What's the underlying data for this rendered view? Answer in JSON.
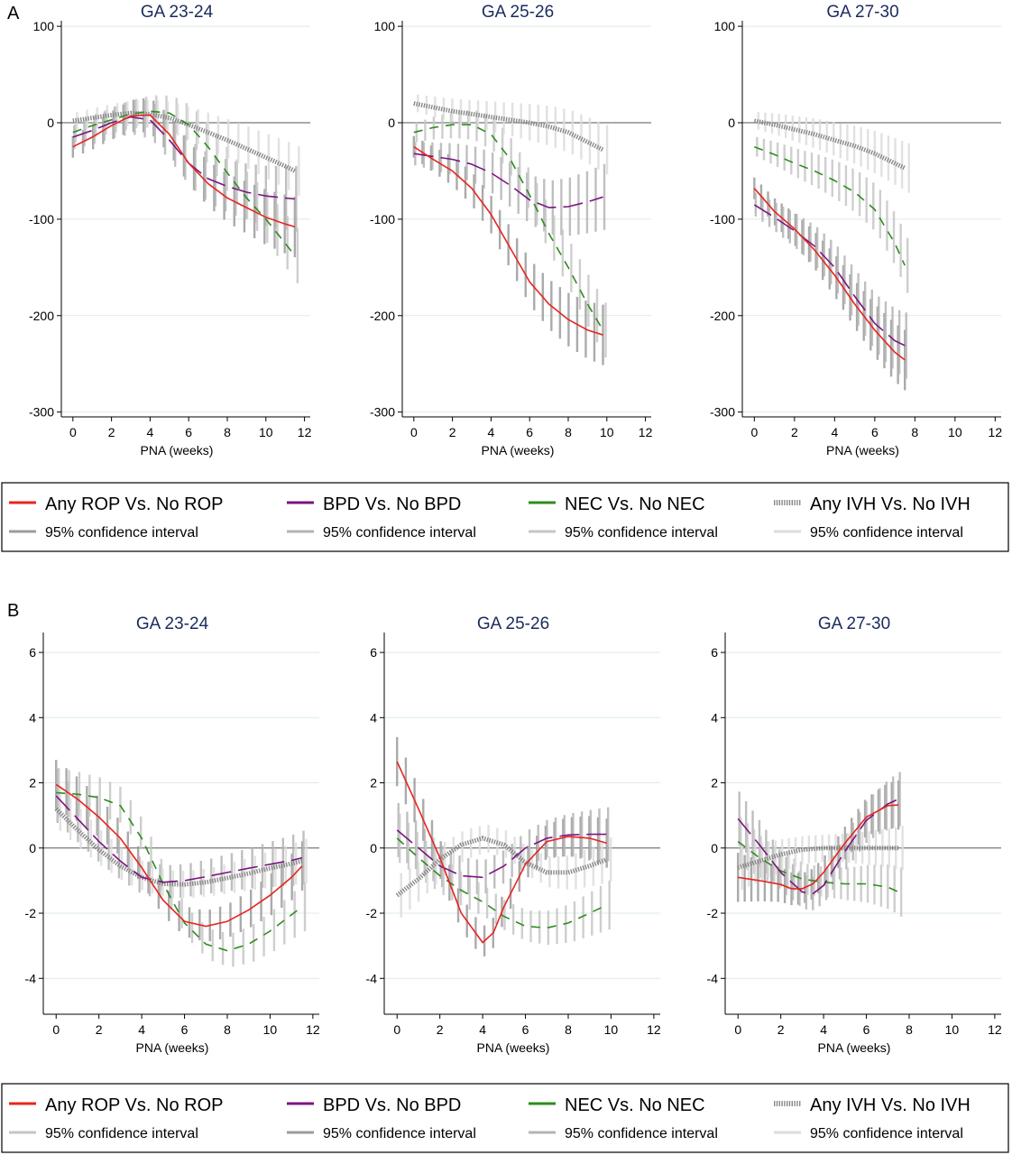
{
  "figure": {
    "panel_labels": [
      "A",
      "B"
    ],
    "legend": [
      {
        "label": "Any ROP Vs. No ROP",
        "color": "#e8241f",
        "style": "solid",
        "ci_label": "95% confidence interval"
      },
      {
        "label": "BPD Vs. No BPD",
        "color": "#7b1480",
        "style": "longdash",
        "ci_label": "95% confidence interval"
      },
      {
        "label": "NEC Vs. No NEC",
        "color": "#2e8b1e",
        "style": "dash",
        "ci_label": "95% confidence interval"
      },
      {
        "label": "Any IVH Vs. No IVH",
        "color": "#888888",
        "style": "dotted",
        "ci_label": "95% confidence interval"
      }
    ],
    "ci_colors": [
      "#9c9c9c",
      "#b4b4b4",
      "#c6c6c6",
      "#dcdcdc"
    ]
  },
  "chart_data": [
    {
      "panel": "A",
      "type": "line",
      "title": "GA 23-24",
      "xlabel": "PNA (weeks)",
      "ylabel": "",
      "xlim": [
        -0.6,
        12.3
      ],
      "ylim": [
        -305,
        102
      ],
      "xticks": [
        0,
        2,
        4,
        6,
        8,
        10,
        12
      ],
      "yticks": [
        100,
        0,
        -100,
        -200,
        -300
      ],
      "grid": "horizontal",
      "series": [
        {
          "name": "Any ROP Vs. No ROP",
          "x": [
            0,
            1,
            2,
            3,
            4,
            5,
            6,
            7,
            8,
            9,
            10,
            11,
            11.5
          ],
          "values": [
            -25,
            -15,
            -3,
            7,
            8,
            -12,
            -42,
            -63,
            -78,
            -88,
            -98,
            -105,
            -108
          ]
        },
        {
          "name": "BPD Vs. No BPD",
          "x": [
            0,
            1,
            2,
            3,
            4,
            5,
            6,
            7,
            8,
            9,
            10,
            11,
            11.5
          ],
          "values": [
            -15,
            -8,
            0,
            6,
            3,
            -18,
            -42,
            -58,
            -66,
            -72,
            -76,
            -78,
            -79
          ]
        },
        {
          "name": "NEC Vs. No NEC",
          "x": [
            0,
            1,
            2,
            3,
            4,
            5,
            6,
            7,
            8,
            9,
            10,
            11,
            11.5
          ],
          "values": [
            -10,
            -3,
            3,
            9,
            12,
            10,
            -2,
            -25,
            -52,
            -78,
            -100,
            -125,
            -138
          ]
        },
        {
          "name": "Any IVH Vs. No IVH",
          "x": [
            0,
            1,
            2,
            3,
            4,
            5,
            6,
            7,
            8,
            9,
            10,
            11,
            11.5
          ],
          "values": [
            2,
            5,
            8,
            10,
            9,
            5,
            -2,
            -10,
            -18,
            -27,
            -36,
            -45,
            -50
          ]
        }
      ]
    },
    {
      "panel": "A",
      "type": "line",
      "title": "GA 25-26",
      "xlabel": "PNA (weeks)",
      "ylabel": "",
      "xlim": [
        -0.6,
        12.3
      ],
      "ylim": [
        -305,
        102
      ],
      "xticks": [
        0,
        2,
        4,
        6,
        8,
        10,
        12
      ],
      "yticks": [
        100,
        0,
        -100,
        -200,
        -300
      ],
      "grid": "horizontal",
      "series": [
        {
          "name": "Any ROP Vs. No ROP",
          "x": [
            0,
            1,
            2,
            3,
            4,
            5,
            6,
            7,
            8,
            9,
            9.8
          ],
          "values": [
            -25,
            -38,
            -50,
            -68,
            -95,
            -130,
            -165,
            -188,
            -204,
            -215,
            -220
          ]
        },
        {
          "name": "BPD Vs. No BPD",
          "x": [
            0,
            1,
            2,
            3,
            4,
            5,
            6,
            7,
            8,
            9,
            9.8
          ],
          "values": [
            -32,
            -35,
            -38,
            -43,
            -52,
            -65,
            -80,
            -88,
            -87,
            -82,
            -77
          ]
        },
        {
          "name": "NEC Vs. No NEC",
          "x": [
            0,
            1,
            2,
            3,
            4,
            5,
            6,
            7,
            8,
            9,
            9.8
          ],
          "values": [
            -10,
            -5,
            -2,
            -2,
            -12,
            -38,
            -75,
            -115,
            -150,
            -188,
            -215
          ]
        },
        {
          "name": "Any IVH Vs. No IVH",
          "x": [
            0,
            1,
            2,
            3,
            4,
            5,
            6,
            7,
            8,
            9,
            9.8
          ],
          "values": [
            20,
            16,
            12,
            9,
            6,
            3,
            0,
            -4,
            -10,
            -20,
            -28
          ]
        }
      ]
    },
    {
      "panel": "A",
      "type": "line",
      "title": "GA 27-30",
      "xlabel": "PNA (weeks)",
      "ylabel": "",
      "xlim": [
        -0.6,
        12.3
      ],
      "ylim": [
        -305,
        102
      ],
      "xticks": [
        0,
        2,
        4,
        6,
        8,
        10,
        12
      ],
      "yticks": [
        100,
        0,
        -100,
        -200,
        -300
      ],
      "grid": "horizontal",
      "series": [
        {
          "name": "Any ROP Vs. No ROP",
          "x": [
            0,
            1,
            2,
            3,
            4,
            5,
            6,
            7,
            7.5
          ],
          "values": [
            -68,
            -92,
            -110,
            -132,
            -158,
            -188,
            -215,
            -238,
            -246
          ]
        },
        {
          "name": "BPD Vs. No BPD",
          "x": [
            0,
            1,
            2,
            3,
            4,
            5,
            6,
            7,
            7.5
          ],
          "values": [
            -85,
            -98,
            -112,
            -128,
            -150,
            -180,
            -208,
            -226,
            -231
          ]
        },
        {
          "name": "NEC Vs. No NEC",
          "x": [
            0,
            1,
            2,
            3,
            4,
            5,
            6,
            7,
            7.5
          ],
          "values": [
            -25,
            -33,
            -42,
            -50,
            -60,
            -72,
            -90,
            -125,
            -148
          ]
        },
        {
          "name": "Any IVH Vs. No IVH",
          "x": [
            0,
            1,
            2,
            3,
            4,
            5,
            6,
            7,
            7.5
          ],
          "values": [
            2,
            -2,
            -7,
            -12,
            -18,
            -24,
            -32,
            -42,
            -47
          ]
        }
      ]
    },
    {
      "panel": "B",
      "type": "line",
      "title": "GA 23-24",
      "xlabel": "PNA (weeks)",
      "ylabel": "",
      "xlim": [
        -0.6,
        12.3
      ],
      "ylim": [
        -5.1,
        6.5
      ],
      "xticks": [
        0,
        2,
        4,
        6,
        8,
        10,
        12
      ],
      "yticks": [
        6,
        4,
        2,
        0,
        -2,
        -4
      ],
      "grid": "horizontal",
      "series": [
        {
          "name": "Any ROP Vs. No ROP",
          "x": [
            0,
            1,
            2,
            3,
            4,
            5,
            6,
            7,
            8,
            9,
            10,
            11,
            11.5
          ],
          "values": [
            1.95,
            1.5,
            0.95,
            0.3,
            -0.6,
            -1.6,
            -2.25,
            -2.4,
            -2.25,
            -1.9,
            -1.45,
            -0.9,
            -0.55
          ]
        },
        {
          "name": "BPD Vs. No BPD",
          "x": [
            0,
            1,
            2,
            3,
            4,
            5,
            6,
            7,
            8,
            9,
            10,
            11,
            11.5
          ],
          "values": [
            1.6,
            0.9,
            0.2,
            -0.4,
            -0.9,
            -1.05,
            -1.0,
            -0.88,
            -0.75,
            -0.62,
            -0.5,
            -0.38,
            -0.3
          ]
        },
        {
          "name": "NEC Vs. No NEC",
          "x": [
            0,
            1,
            2,
            3,
            4,
            5,
            6,
            7,
            8,
            9,
            10,
            11,
            11.5
          ],
          "values": [
            1.7,
            1.65,
            1.55,
            1.3,
            0.3,
            -1.1,
            -2.3,
            -2.95,
            -3.15,
            -2.95,
            -2.55,
            -2.05,
            -1.8
          ]
        },
        {
          "name": "Any IVH Vs. No IVH",
          "x": [
            0,
            1,
            2,
            3,
            4,
            5,
            6,
            7,
            8,
            9,
            10,
            11,
            11.5
          ],
          "values": [
            1.2,
            0.55,
            -0.05,
            -0.55,
            -0.9,
            -1.1,
            -1.12,
            -1.05,
            -0.92,
            -0.78,
            -0.62,
            -0.48,
            -0.4
          ]
        }
      ]
    },
    {
      "panel": "B",
      "type": "line",
      "title": "GA 25-26",
      "xlabel": "PNA (weeks)",
      "ylabel": "",
      "xlim": [
        -0.6,
        12.3
      ],
      "ylim": [
        -5.1,
        6.5
      ],
      "xticks": [
        0,
        2,
        4,
        6,
        8,
        10,
        12
      ],
      "yticks": [
        6,
        4,
        2,
        0,
        -2,
        -4
      ],
      "grid": "horizontal",
      "series": [
        {
          "name": "Any ROP Vs. No ROP",
          "x": [
            0,
            1,
            2,
            3,
            4,
            4.5,
            5,
            6,
            7,
            8,
            9,
            9.8
          ],
          "values": [
            2.65,
            1.2,
            -0.3,
            -2.0,
            -2.9,
            -2.6,
            -1.8,
            -0.5,
            0.2,
            0.35,
            0.3,
            0.15
          ]
        },
        {
          "name": "BPD Vs. No BPD",
          "x": [
            0,
            1,
            2,
            3,
            4,
            5,
            6,
            7,
            8,
            9,
            9.8
          ],
          "values": [
            0.55,
            0.0,
            -0.55,
            -0.85,
            -0.9,
            -0.55,
            0.0,
            0.3,
            0.4,
            0.42,
            0.42
          ]
        },
        {
          "name": "NEC Vs. No NEC",
          "x": [
            0,
            1,
            2,
            3,
            4,
            5,
            6,
            7,
            8,
            9,
            9.8
          ],
          "values": [
            0.3,
            -0.3,
            -0.85,
            -1.3,
            -1.65,
            -2.1,
            -2.4,
            -2.45,
            -2.3,
            -2.0,
            -1.75
          ]
        },
        {
          "name": "Any IVH Vs. No IVH",
          "x": [
            0,
            1,
            2,
            3,
            4,
            5,
            6,
            7,
            8,
            9,
            9.8
          ],
          "values": [
            -1.45,
            -0.95,
            -0.35,
            0.1,
            0.3,
            0.1,
            -0.45,
            -0.75,
            -0.75,
            -0.55,
            -0.35
          ]
        }
      ]
    },
    {
      "panel": "B",
      "type": "line",
      "title": "GA 27-30",
      "xlabel": "PNA (weeks)",
      "ylabel": "",
      "xlim": [
        -0.6,
        12.3
      ],
      "ylim": [
        -5.1,
        6.5
      ],
      "xticks": [
        0,
        2,
        4,
        6,
        8,
        10,
        12
      ],
      "yticks": [
        6,
        4,
        2,
        0,
        -2,
        -4
      ],
      "grid": "horizontal",
      "series": [
        {
          "name": "Any ROP Vs. No ROP",
          "x": [
            0,
            1,
            2,
            2.5,
            3,
            3.5,
            4,
            5,
            6,
            7,
            7.5
          ],
          "values": [
            -0.9,
            -1.0,
            -1.12,
            -1.25,
            -1.25,
            -1.1,
            -0.75,
            0.15,
            0.95,
            1.3,
            1.32
          ]
        },
        {
          "name": "BPD Vs. No BPD",
          "x": [
            0,
            1,
            2,
            3,
            3.5,
            4,
            5,
            6,
            7,
            7.5
          ],
          "values": [
            0.9,
            0.1,
            -0.75,
            -1.35,
            -1.4,
            -1.15,
            -0.1,
            0.85,
            1.35,
            1.5
          ]
        },
        {
          "name": "NEC Vs. No NEC",
          "x": [
            0,
            1,
            2,
            3,
            4,
            5,
            6,
            7,
            7.5
          ],
          "values": [
            0.2,
            -0.3,
            -0.7,
            -0.95,
            -1.05,
            -1.1,
            -1.1,
            -1.2,
            -1.35
          ]
        },
        {
          "name": "Any IVH Vs. No IVH",
          "x": [
            0,
            1,
            2,
            3,
            4,
            5,
            6,
            7,
            7.5
          ],
          "values": [
            -0.6,
            -0.4,
            -0.2,
            -0.05,
            0.0,
            0.0,
            0.0,
            0.0,
            0.0
          ]
        }
      ]
    }
  ]
}
